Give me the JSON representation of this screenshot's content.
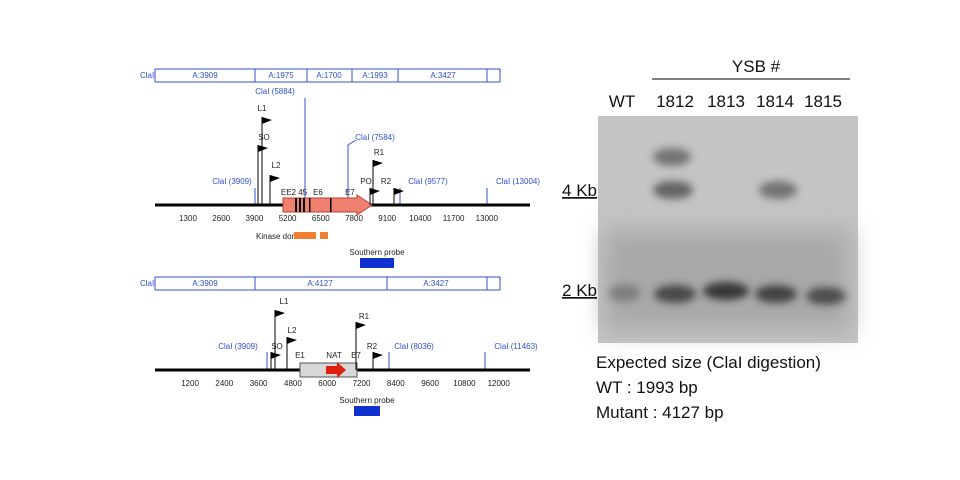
{
  "top_map": {
    "restriction_label": "ClaI",
    "fragments": [
      "A:3909",
      "A:1975",
      "A:1700",
      "A:1993",
      "A:3427"
    ],
    "sites": [
      "ClaI (3909)",
      "ClaI (5884)",
      "ClaI (7584)",
      "ClaI (9577)",
      "ClaI (13004)"
    ],
    "primers": [
      "L1",
      "SO",
      "L2",
      "R1",
      "PO",
      "R2"
    ],
    "exons": [
      "EE2 45",
      "E6",
      "E7"
    ],
    "axis_ticks": [
      "1300",
      "2600",
      "3900",
      "5200",
      "6500",
      "7800",
      "9100",
      "10400",
      "11700",
      "13000"
    ],
    "kinase_label": "Kinase domain",
    "probe_label": "Southern probe"
  },
  "bottom_map": {
    "restriction_label": "ClaI",
    "fragments": [
      "A:3909",
      "A:4127",
      "A:3427"
    ],
    "sites": [
      "ClaI (3909)",
      "ClaI (8036)",
      "ClaI (11463)"
    ],
    "primers": [
      "L1",
      "L2",
      "SO",
      "R1",
      "R2"
    ],
    "exons": [
      "E1",
      "NAT",
      "E7"
    ],
    "axis_ticks": [
      "1200",
      "2400",
      "3600",
      "4800",
      "6000",
      "7200",
      "8400",
      "9600",
      "10800",
      "12000"
    ],
    "probe_label": "Southern probe"
  },
  "gel": {
    "group_label": "YSB #",
    "lanes": [
      "WT",
      "1812",
      "1813",
      "1814",
      "1815"
    ],
    "markers": [
      "4 Kb",
      "2 Kb"
    ],
    "caption": [
      "Expected size (ClaI digestion)",
      "WT : 1993 bp",
      "Mutant : 4127 bp"
    ]
  }
}
